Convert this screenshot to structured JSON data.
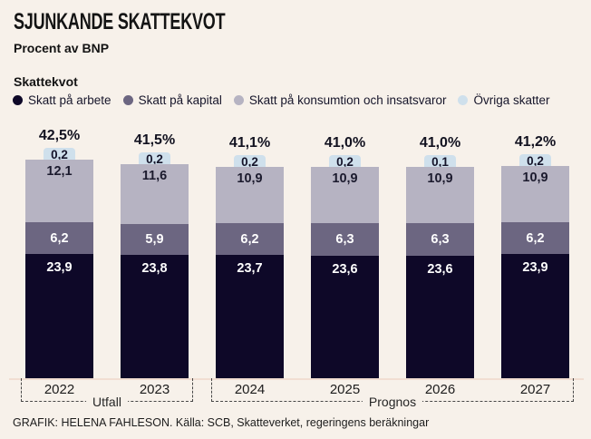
{
  "header": {
    "title": "SJUNKANDE SKATTEKVOT",
    "subtitle": "Procent av BNP"
  },
  "chart_data": {
    "type": "bar",
    "stacked": true,
    "title": "Sjunkande skattekvot",
    "ylabel": "Procent av BNP",
    "legend_title": "Skattekvot",
    "legend_position": "top",
    "grid": false,
    "categories": [
      "2022",
      "2023",
      "2024",
      "2025",
      "2026",
      "2027"
    ],
    "totals": [
      "42,5%",
      "41,5%",
      "41,1%",
      "41,0%",
      "41,0%",
      "41,2%"
    ],
    "series": [
      {
        "name": "Skatt på arbete",
        "color": "#0e0828",
        "label_color": "#ffffff",
        "values": [
          23.9,
          23.8,
          23.7,
          23.6,
          23.6,
          23.9
        ]
      },
      {
        "name": "Skatt på kapital",
        "color": "#6c6681",
        "label_color": "#ffffff",
        "values": [
          6.2,
          5.9,
          6.2,
          6.3,
          6.3,
          6.2
        ]
      },
      {
        "name": "Skatt på konsumtion och insatsvaror",
        "color": "#b6b3c2",
        "label_color": "#1c1b2e",
        "values": [
          12.1,
          11.6,
          10.9,
          10.9,
          10.9,
          10.9
        ]
      },
      {
        "name": "Övriga skatter",
        "color": "#cfe0ec",
        "label_color": "#15142a",
        "values": [
          0.2,
          0.2,
          0.2,
          0.2,
          0.1,
          0.2
        ]
      }
    ],
    "groups": [
      {
        "label": "Utfall",
        "from": 0,
        "to": 1
      },
      {
        "label": "Prognos",
        "from": 2,
        "to": 5
      }
    ],
    "axis": {
      "baseline_color": "#f1ded2"
    }
  },
  "footer": {
    "credit": "GRAFIK: HELENA FAHLESON. Källa: SCB, Skatteverket, regeringens beräkningar"
  },
  "colors": {
    "background": "#f7f1ea"
  }
}
